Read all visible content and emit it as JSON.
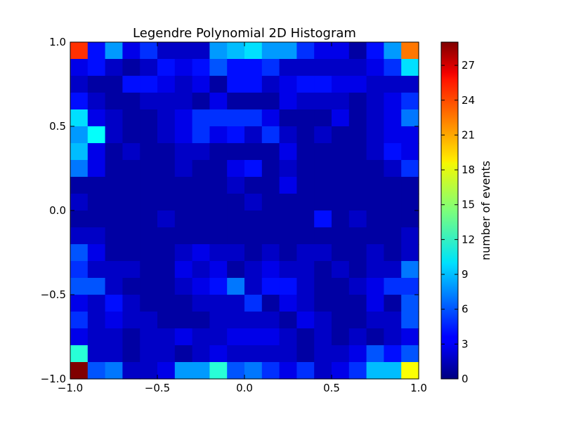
{
  "chart_data": {
    "type": "heatmap",
    "title": "Legendre Polynomial 2D Histogram",
    "xlabel": "",
    "ylabel": "",
    "xlim": [
      -1.0,
      1.0
    ],
    "ylim": [
      -1.0,
      1.0
    ],
    "x_ticks": [
      -1.0,
      -0.5,
      0.0,
      0.5,
      1.0
    ],
    "y_ticks": [
      -1.0,
      -0.5,
      0.0,
      0.5,
      1.0
    ],
    "x_tick_labels": [
      "−1.0",
      "−0.5",
      "0.0",
      "0.5",
      "1.0"
    ],
    "y_tick_labels": [
      "−1.0",
      "−0.5",
      "0.0",
      "0.5",
      "1.0"
    ],
    "bins": [
      20,
      20
    ],
    "colormap": "jet",
    "colorbar": {
      "label": "number of events",
      "range": [
        0,
        29
      ],
      "ticks": [
        0,
        3,
        6,
        9,
        12,
        15,
        18,
        21,
        24,
        27
      ],
      "tick_labels": [
        "0",
        "3",
        "6",
        "9",
        "12",
        "15",
        "18",
        "21",
        "24",
        "27"
      ]
    },
    "grid": false,
    "counts_top_to_bottom": [
      [
        24,
        4,
        8,
        3,
        5,
        2,
        2,
        2,
        8,
        9,
        10,
        8,
        8,
        5,
        3,
        3,
        1,
        4,
        8,
        22
      ],
      [
        3,
        4,
        2,
        1,
        2,
        4,
        3,
        4,
        6,
        4,
        4,
        5,
        2,
        2,
        2,
        2,
        2,
        3,
        5,
        10
      ],
      [
        2,
        1,
        1,
        4,
        4,
        3,
        2,
        3,
        1,
        4,
        4,
        2,
        3,
        4,
        4,
        3,
        3,
        2,
        2,
        2
      ],
      [
        4,
        2,
        1,
        1,
        2,
        2,
        2,
        1,
        3,
        1,
        1,
        1,
        3,
        2,
        2,
        2,
        1,
        2,
        3,
        5
      ],
      [
        10,
        3,
        2,
        1,
        1,
        2,
        3,
        5,
        5,
        5,
        5,
        3,
        1,
        1,
        1,
        3,
        1,
        2,
        3,
        7
      ],
      [
        8,
        11,
        2,
        1,
        1,
        2,
        3,
        5,
        3,
        4,
        2,
        5,
        2,
        1,
        2,
        1,
        1,
        2,
        3,
        3
      ],
      [
        9,
        3,
        1,
        2,
        1,
        1,
        2,
        2,
        1,
        1,
        1,
        1,
        3,
        1,
        1,
        1,
        1,
        2,
        4,
        3
      ],
      [
        7,
        3,
        1,
        1,
        1,
        1,
        2,
        1,
        1,
        3,
        4,
        1,
        2,
        1,
        1,
        1,
        1,
        1,
        2,
        5
      ],
      [
        1,
        1,
        1,
        1,
        1,
        1,
        1,
        1,
        1,
        2,
        1,
        1,
        3,
        1,
        1,
        1,
        1,
        1,
        1,
        1
      ],
      [
        2,
        1,
        1,
        1,
        1,
        1,
        1,
        1,
        1,
        1,
        2,
        1,
        1,
        1,
        1,
        1,
        1,
        1,
        1,
        1
      ],
      [
        1,
        1,
        1,
        1,
        1,
        2,
        1,
        1,
        1,
        1,
        1,
        1,
        1,
        1,
        4,
        1,
        2,
        1,
        1,
        1
      ],
      [
        2,
        2,
        1,
        1,
        1,
        1,
        1,
        1,
        1,
        1,
        1,
        1,
        1,
        1,
        1,
        1,
        1,
        1,
        1,
        2
      ],
      [
        6,
        3,
        1,
        1,
        1,
        1,
        2,
        3,
        2,
        2,
        1,
        2,
        1,
        2,
        2,
        1,
        1,
        2,
        1,
        2
      ],
      [
        5,
        2,
        2,
        2,
        1,
        1,
        3,
        2,
        3,
        1,
        2,
        3,
        2,
        2,
        1,
        2,
        1,
        2,
        2,
        7
      ],
      [
        6,
        6,
        2,
        1,
        1,
        1,
        2,
        3,
        4,
        7,
        2,
        4,
        4,
        2,
        1,
        1,
        2,
        3,
        5,
        5
      ],
      [
        3,
        2,
        4,
        2,
        1,
        1,
        1,
        2,
        2,
        2,
        5,
        1,
        3,
        2,
        1,
        1,
        1,
        3,
        1,
        6
      ],
      [
        5,
        2,
        3,
        2,
        2,
        1,
        1,
        1,
        2,
        2,
        2,
        2,
        1,
        3,
        2,
        1,
        1,
        2,
        2,
        6
      ],
      [
        3,
        2,
        2,
        1,
        2,
        2,
        3,
        2,
        2,
        3,
        3,
        3,
        2,
        1,
        2,
        1,
        2,
        1,
        2,
        3
      ],
      [
        12,
        2,
        2,
        1,
        2,
        2,
        1,
        2,
        3,
        2,
        2,
        2,
        2,
        1,
        2,
        2,
        3,
        6,
        4,
        6
      ],
      [
        29,
        6,
        7,
        2,
        2,
        3,
        8,
        8,
        12,
        6,
        7,
        5,
        3,
        5,
        2,
        3,
        5,
        9,
        9,
        18
      ]
    ]
  }
}
